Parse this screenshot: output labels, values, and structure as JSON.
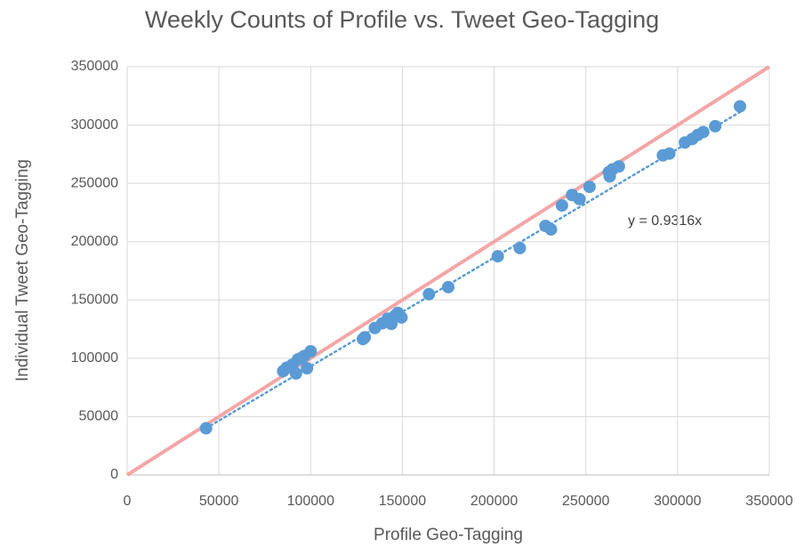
{
  "chart_data": {
    "type": "scatter",
    "title": "Weekly Counts of Profile vs. Tweet Geo-Tagging",
    "x_label": "Profile Geo-Tagging",
    "y_label": "Individual Tweet Geo-Tagging",
    "annotation": "y = 0.9316x",
    "x": [
      43000,
      85000,
      87000,
      90000,
      92000,
      93000,
      94500,
      96500,
      98000,
      100000,
      128500,
      129500,
      135000,
      139000,
      142000,
      144000,
      146000,
      147500,
      149500,
      164500,
      175000,
      202000,
      214000,
      228000,
      231000,
      237000,
      242500,
      246500,
      252000,
      262500,
      263000,
      264500,
      268000,
      292000,
      295500,
      304000,
      308000,
      311000,
      314000,
      320500,
      334000
    ],
    "series": [
      {
        "color": "#5b9bd5",
        "values": [
          40000,
          89000,
          92000,
          94500,
          87000,
          99000,
          100000,
          102000,
          91500,
          106000,
          116500,
          118000,
          126000,
          130000,
          134000,
          129500,
          136500,
          139000,
          135000,
          155000,
          161000,
          187500,
          194500,
          213500,
          210500,
          231000,
          240000,
          236500,
          247000,
          259500,
          256000,
          262000,
          264500,
          274000,
          275500,
          285000,
          288000,
          291500,
          294000,
          299000,
          316000
        ]
      }
    ],
    "trendline": {
      "slope": 0.9316,
      "color": "#5b9bd5"
    },
    "reference_line": {
      "slope": 1,
      "color": "#f4a6a6"
    },
    "xlim": [
      0,
      350000
    ],
    "xticks": [
      0,
      50000,
      100000,
      150000,
      200000,
      250000,
      300000,
      350000
    ],
    "ylim": [
      0,
      350000
    ],
    "yticks": [
      0,
      50000,
      100000,
      150000,
      200000,
      250000,
      300000,
      350000
    ],
    "grid": true
  }
}
